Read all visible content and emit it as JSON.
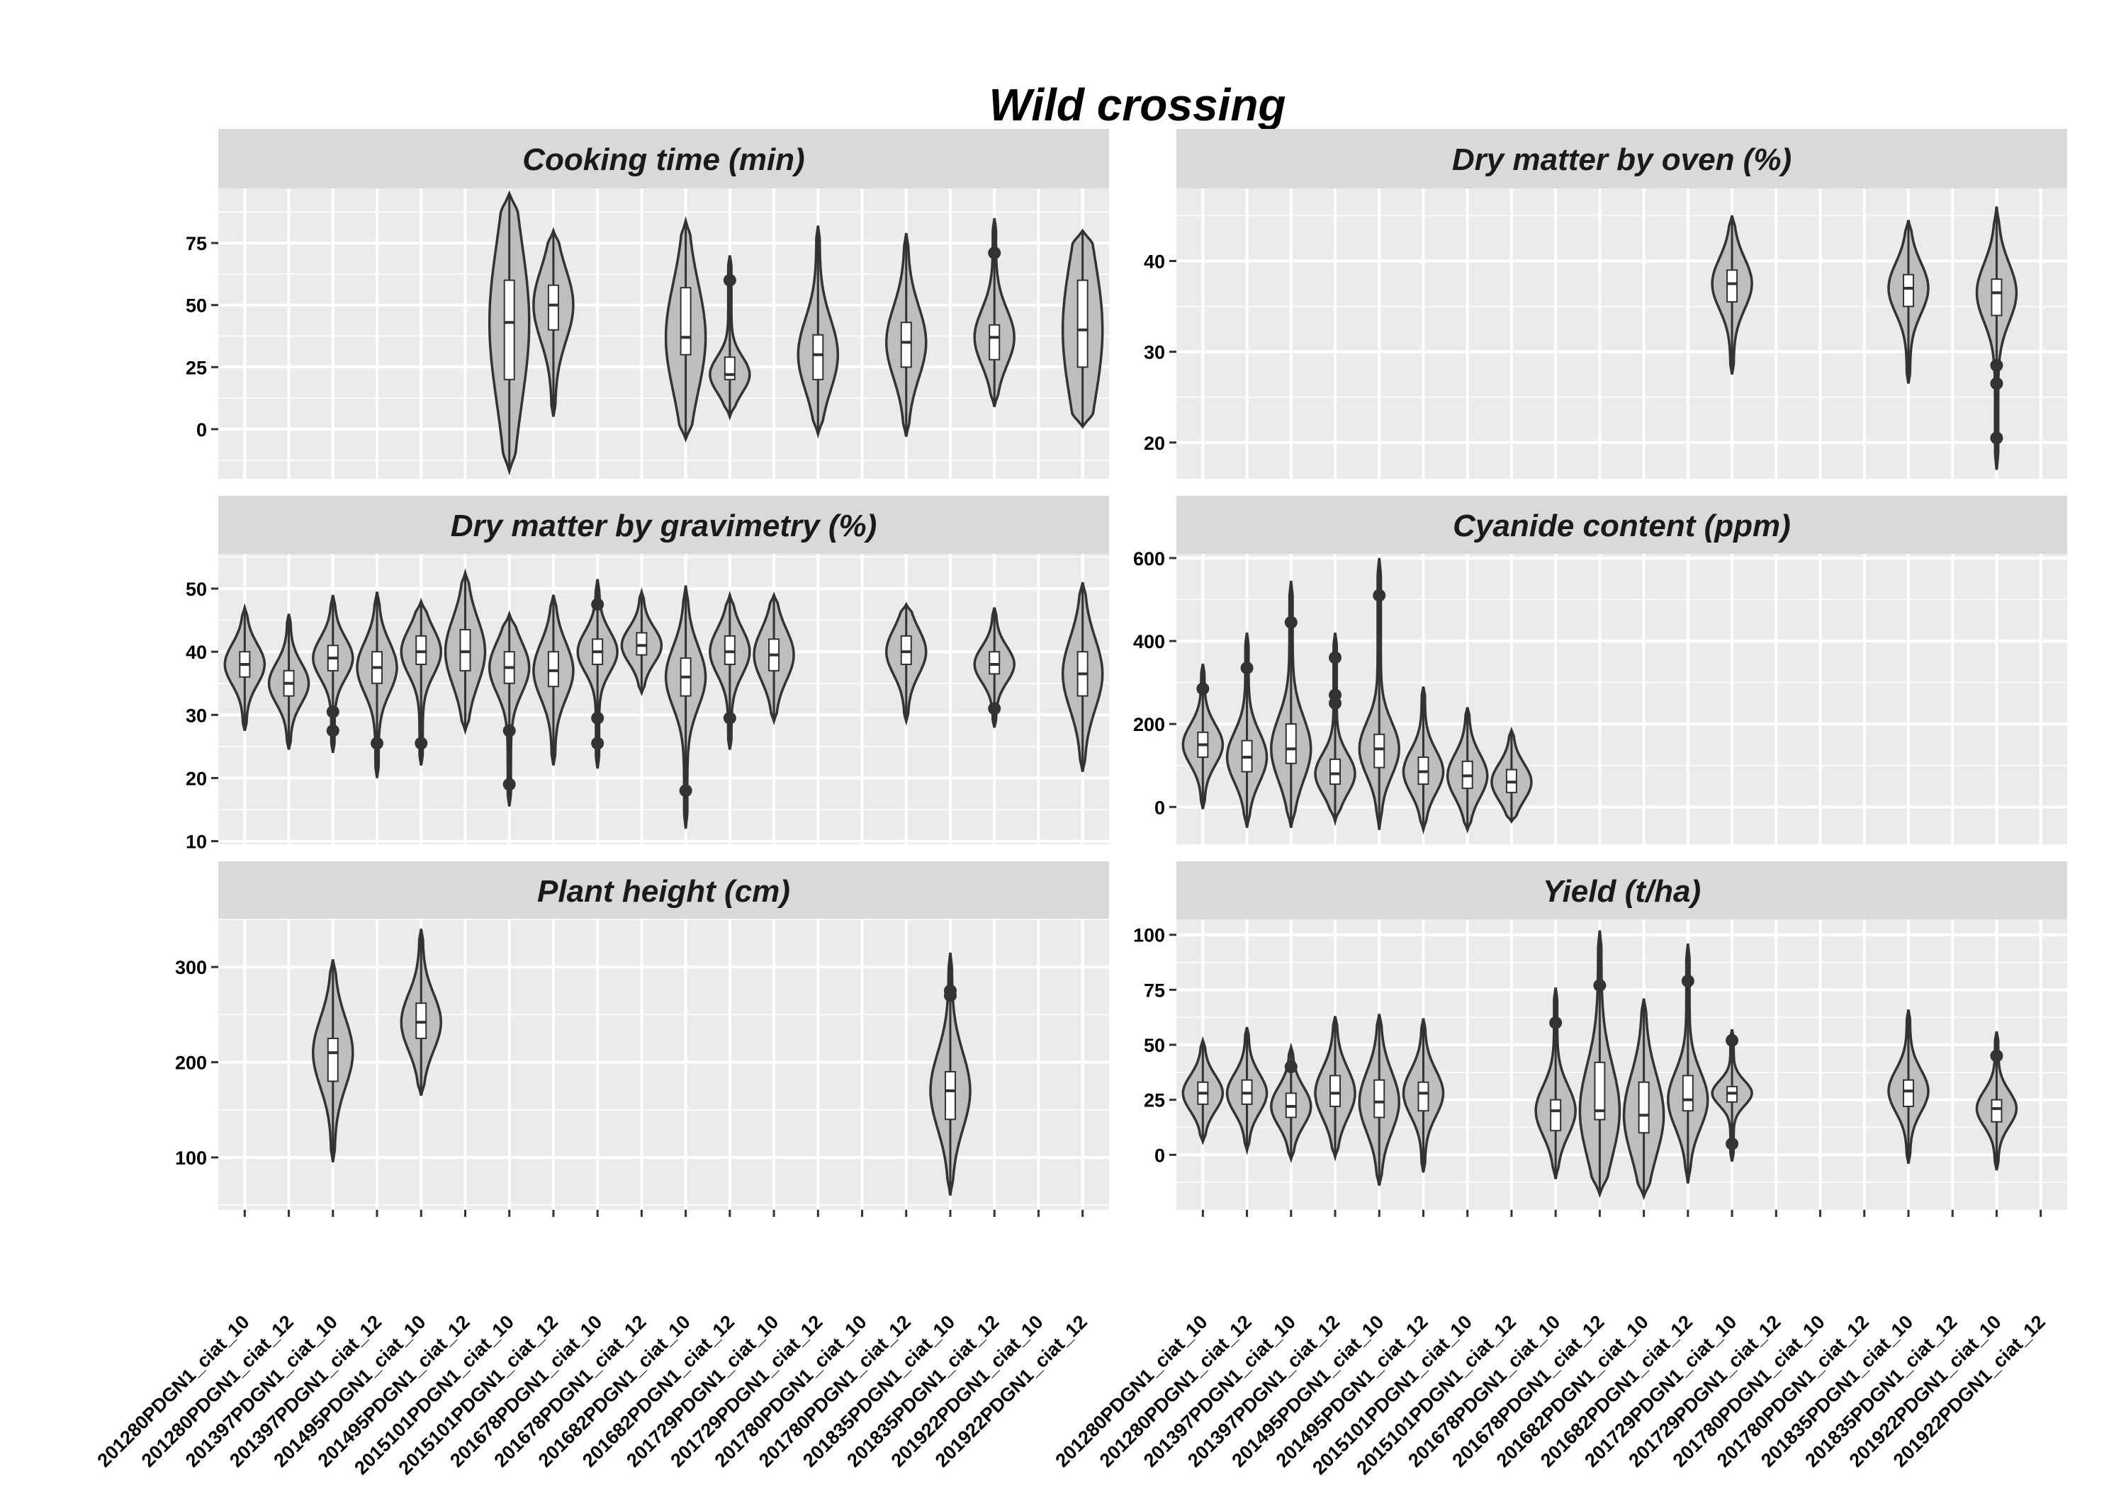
{
  "chart_data": {
    "type": "violin",
    "title": "Wild crossing",
    "categories": [
      "201280PDGN1_ciat_10",
      "201280PDGN1_ciat_12",
      "201397PDGN1_ciat_10",
      "201397PDGN1_ciat_12",
      "201495PDGN1_ciat_10",
      "201495PDGN1_ciat_12",
      "2015101PDGN1_ciat_10",
      "2015101PDGN1_ciat_12",
      "201678PDGN1_ciat_10",
      "201678PDGN1_ciat_12",
      "201682PDGN1_ciat_10",
      "201682PDGN1_ciat_12",
      "201729PDGN1_ciat_10",
      "201729PDGN1_ciat_12",
      "201780PDGN1_ciat_10",
      "201780PDGN1_ciat_12",
      "201835PDGN1_ciat_10",
      "201835PDGN1_ciat_12",
      "201922PDGN1_ciat_10",
      "201922PDGN1_ciat_12"
    ],
    "panels": [
      {
        "title": "Cooking time (min)",
        "ylim": [
          -20,
          97
        ],
        "yticks": [
          0,
          25,
          50,
          75
        ],
        "violins": [
          {
            "cat": 6,
            "min": -17,
            "max": 95,
            "q1": 20,
            "median": 43,
            "q3": 60,
            "outliers": []
          },
          {
            "cat": 7,
            "min": 5,
            "max": 80,
            "q1": 40,
            "median": 50,
            "q3": 58,
            "outliers": []
          },
          {
            "cat": 10,
            "min": -4,
            "max": 84,
            "q1": 30,
            "median": 37,
            "q3": 57,
            "outliers": []
          },
          {
            "cat": 11,
            "min": 5,
            "max": 70,
            "q1": 20,
            "median": 22,
            "q3": 29,
            "outliers": [
              60
            ]
          },
          {
            "cat": 13,
            "min": -2,
            "max": 82,
            "q1": 20,
            "median": 30,
            "q3": 38,
            "outliers": []
          },
          {
            "cat": 15,
            "min": -3,
            "max": 79,
            "q1": 25,
            "median": 35,
            "q3": 43,
            "outliers": []
          },
          {
            "cat": 17,
            "min": 9,
            "max": 85,
            "q1": 28,
            "median": 37,
            "q3": 42,
            "outliers": [
              71
            ]
          },
          {
            "cat": 19,
            "min": 1,
            "max": 80,
            "q1": 25,
            "median": 40,
            "q3": 60,
            "outliers": []
          }
        ]
      },
      {
        "title": "Dry matter by oven (%)",
        "ylim": [
          16,
          48
        ],
        "yticks": [
          20,
          30,
          40
        ],
        "violins": [
          {
            "cat": 12,
            "min": 27.5,
            "max": 45,
            "q1": 35.5,
            "median": 37.5,
            "q3": 39,
            "outliers": []
          },
          {
            "cat": 16,
            "min": 26.5,
            "max": 44.5,
            "q1": 35,
            "median": 37,
            "q3": 38.5,
            "outliers": []
          },
          {
            "cat": 18,
            "min": 17,
            "max": 46,
            "q1": 34,
            "median": 36.5,
            "q3": 38,
            "outliers": [
              28.5,
              26.5,
              20.5
            ]
          }
        ]
      },
      {
        "title": "Dry matter by gravimetry (%)",
        "ylim": [
          9.5,
          55.5
        ],
        "yticks": [
          10,
          20,
          30,
          40,
          50
        ],
        "violins": [
          {
            "cat": 0,
            "min": 27.5,
            "max": 47,
            "q1": 36,
            "median": 38,
            "q3": 40,
            "outliers": []
          },
          {
            "cat": 1,
            "min": 24.5,
            "max": 46,
            "q1": 33,
            "median": 35,
            "q3": 37,
            "outliers": []
          },
          {
            "cat": 2,
            "min": 24,
            "max": 49,
            "q1": 37,
            "median": 39,
            "q3": 41,
            "outliers": [
              30.5,
              27.5
            ]
          },
          {
            "cat": 3,
            "min": 20,
            "max": 49.5,
            "q1": 35,
            "median": 37.5,
            "q3": 40,
            "outliers": [
              25.5
            ]
          },
          {
            "cat": 4,
            "min": 22,
            "max": 48,
            "q1": 38,
            "median": 40,
            "q3": 42.5,
            "outliers": [
              25.5
            ]
          },
          {
            "cat": 5,
            "min": 27.5,
            "max": 52.5,
            "q1": 37,
            "median": 40,
            "q3": 43.5,
            "outliers": []
          },
          {
            "cat": 6,
            "min": 15.5,
            "max": 46,
            "q1": 35,
            "median": 37.5,
            "q3": 40,
            "outliers": [
              27.5,
              19
            ]
          },
          {
            "cat": 7,
            "min": 22,
            "max": 49,
            "q1": 34.5,
            "median": 37,
            "q3": 40,
            "outliers": []
          },
          {
            "cat": 8,
            "min": 21.5,
            "max": 51.5,
            "q1": 38,
            "median": 40,
            "q3": 42,
            "outliers": [
              47.5,
              29.5,
              25.5
            ]
          },
          {
            "cat": 9,
            "min": 33.5,
            "max": 49.5,
            "q1": 39.5,
            "median": 41,
            "q3": 43,
            "outliers": []
          },
          {
            "cat": 10,
            "min": 12,
            "max": 50.5,
            "q1": 33,
            "median": 36,
            "q3": 39,
            "outliers": [
              18
            ]
          },
          {
            "cat": 11,
            "min": 24.5,
            "max": 49,
            "q1": 38,
            "median": 40,
            "q3": 42.5,
            "outliers": [
              29.5
            ]
          },
          {
            "cat": 12,
            "min": 29,
            "max": 49,
            "q1": 37,
            "median": 39.5,
            "q3": 42,
            "outliers": []
          },
          {
            "cat": 15,
            "min": 29,
            "max": 47.5,
            "q1": 38,
            "median": 40,
            "q3": 42.5,
            "outliers": []
          },
          {
            "cat": 17,
            "min": 28,
            "max": 47,
            "q1": 36.5,
            "median": 38,
            "q3": 40,
            "outliers": [
              31
            ]
          },
          {
            "cat": 19,
            "min": 21,
            "max": 51,
            "q1": 33,
            "median": 36.5,
            "q3": 40,
            "outliers": []
          }
        ]
      },
      {
        "title": "Cyanide content (ppm)",
        "ylim": [
          -90,
          610
        ],
        "yticks": [
          0,
          200,
          400,
          600
        ],
        "violins": [
          {
            "cat": 0,
            "min": -5,
            "max": 345,
            "q1": 120,
            "median": 150,
            "q3": 180,
            "outliers": [
              285
            ]
          },
          {
            "cat": 1,
            "min": -50,
            "max": 420,
            "q1": 85,
            "median": 120,
            "q3": 160,
            "outliers": [
              335
            ]
          },
          {
            "cat": 2,
            "min": -50,
            "max": 545,
            "q1": 105,
            "median": 140,
            "q3": 200,
            "outliers": [
              445
            ]
          },
          {
            "cat": 3,
            "min": -35,
            "max": 420,
            "q1": 55,
            "median": 80,
            "q3": 115,
            "outliers": [
              360,
              270,
              250
            ]
          },
          {
            "cat": 4,
            "min": -55,
            "max": 600,
            "q1": 95,
            "median": 140,
            "q3": 175,
            "outliers": [
              510
            ]
          },
          {
            "cat": 5,
            "min": -55,
            "max": 290,
            "q1": 55,
            "median": 85,
            "q3": 120,
            "outliers": []
          },
          {
            "cat": 6,
            "min": -55,
            "max": 240,
            "q1": 45,
            "median": 75,
            "q3": 110,
            "outliers": []
          },
          {
            "cat": 7,
            "min": -35,
            "max": 185,
            "q1": 35,
            "median": 60,
            "q3": 90,
            "outliers": []
          }
        ]
      },
      {
        "title": "Plant height (cm)",
        "ylim": [
          45,
          350
        ],
        "yticks": [
          100,
          200,
          300
        ],
        "violins": [
          {
            "cat": 2,
            "min": 95,
            "max": 308,
            "q1": 180,
            "median": 210,
            "q3": 225,
            "outliers": []
          },
          {
            "cat": 4,
            "min": 165,
            "max": 340,
            "q1": 225,
            "median": 242,
            "q3": 262,
            "outliers": []
          },
          {
            "cat": 16,
            "min": 60,
            "max": 315,
            "q1": 140,
            "median": 170,
            "q3": 190,
            "outliers": [
              275,
              270
            ]
          }
        ]
      },
      {
        "title": "Yield (t/ha)",
        "ylim": [
          -25,
          107
        ],
        "yticks": [
          0,
          25,
          50,
          75,
          100
        ],
        "violins": [
          {
            "cat": 0,
            "min": 6,
            "max": 52,
            "q1": 23,
            "median": 28,
            "q3": 33,
            "outliers": []
          },
          {
            "cat": 1,
            "min": 2,
            "max": 58,
            "q1": 23,
            "median": 28,
            "q3": 34,
            "outliers": []
          },
          {
            "cat": 2,
            "min": -2,
            "max": 49,
            "q1": 17,
            "median": 22,
            "q3": 28,
            "outliers": [
              40
            ]
          },
          {
            "cat": 3,
            "min": -1,
            "max": 63,
            "q1": 22,
            "median": 28,
            "q3": 36,
            "outliers": []
          },
          {
            "cat": 4,
            "min": -14,
            "max": 64,
            "q1": 17,
            "median": 24,
            "q3": 34,
            "outliers": []
          },
          {
            "cat": 5,
            "min": -8,
            "max": 62,
            "q1": 20,
            "median": 28,
            "q3": 33,
            "outliers": []
          },
          {
            "cat": 8,
            "min": -11,
            "max": 76,
            "q1": 11,
            "median": 20,
            "q3": 25,
            "outliers": [
              60
            ]
          },
          {
            "cat": 9,
            "min": -18,
            "max": 102,
            "q1": 16,
            "median": 20,
            "q3": 42,
            "outliers": [
              77
            ]
          },
          {
            "cat": 10,
            "min": -19,
            "max": 71,
            "q1": 10,
            "median": 18,
            "q3": 33,
            "outliers": []
          },
          {
            "cat": 11,
            "min": -13,
            "max": 96,
            "q1": 20,
            "median": 25,
            "q3": 36,
            "outliers": [
              79
            ]
          },
          {
            "cat": 12,
            "min": -3,
            "max": 57,
            "q1": 24,
            "median": 28,
            "q3": 31,
            "outliers": [
              52,
              5
            ]
          },
          {
            "cat": 16,
            "min": -4,
            "max": 66,
            "q1": 22,
            "median": 29,
            "q3": 34,
            "outliers": []
          },
          {
            "cat": 18,
            "min": -7,
            "max": 56,
            "q1": 15,
            "median": 21,
            "q3": 25,
            "outliers": [
              45
            ]
          }
        ]
      }
    ]
  },
  "colors": {
    "panel_bg": "#ebebeb",
    "strip_bg": "#d9d9d9",
    "grid": "#ffffff",
    "violin_fill": "#bebebe",
    "stroke": "#333333",
    "box_fill": "#ffffff"
  }
}
